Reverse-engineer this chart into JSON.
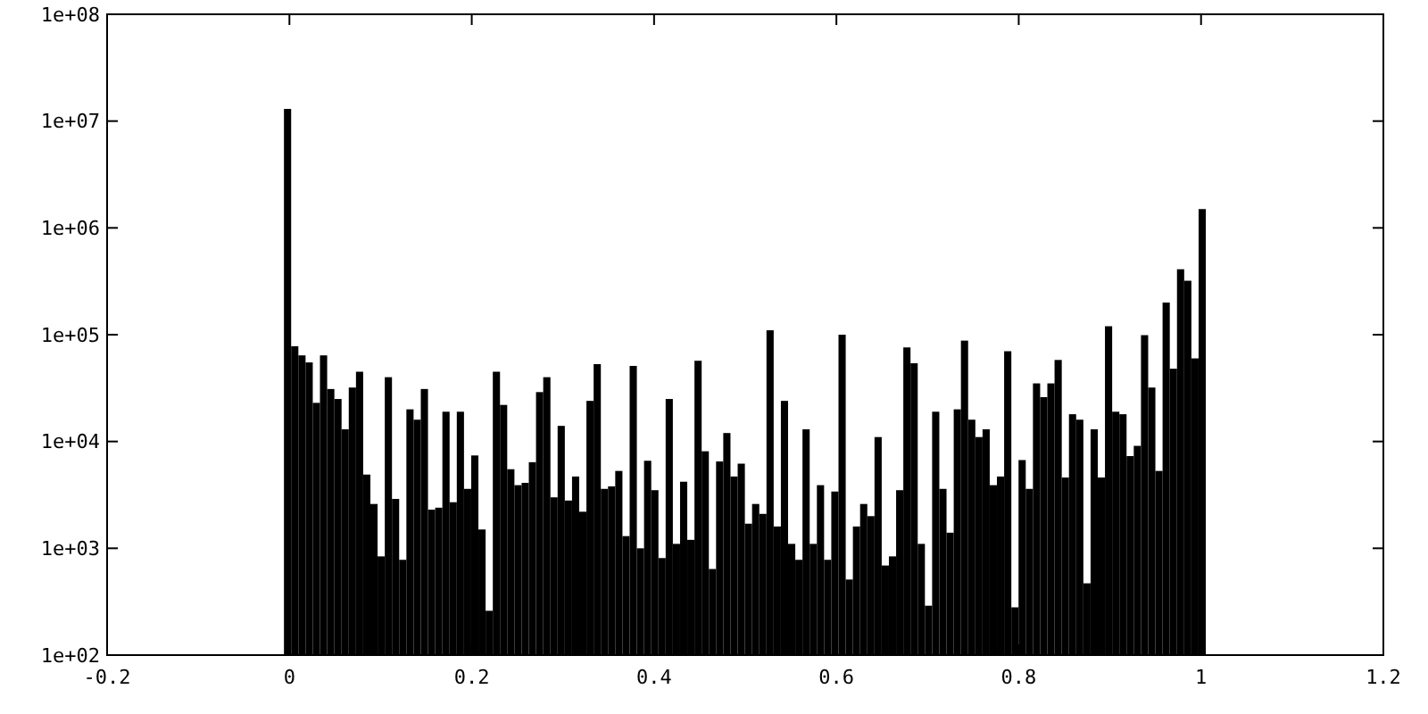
{
  "chart_data": {
    "type": "histogram",
    "log": "y",
    "color": "#000000",
    "grid": false,
    "bins": [
      -0.006,
      0.0019,
      0.0098,
      0.0177,
      0.0256,
      0.0335,
      0.0414,
      0.0493,
      0.0572,
      0.0651,
      0.073,
      0.0809,
      0.0888,
      0.0967,
      0.1046,
      0.1125,
      0.1204,
      0.1283,
      0.1362,
      0.1441,
      0.152,
      0.1599,
      0.1678,
      0.1757,
      0.1836,
      0.1915,
      0.1994,
      0.2073,
      0.2152,
      0.2231,
      0.231,
      0.2389,
      0.2468,
      0.2547,
      0.2626,
      0.2705,
      0.2784,
      0.2863,
      0.2942,
      0.3021,
      0.31,
      0.3179,
      0.3258,
      0.3337,
      0.3416,
      0.3495,
      0.3574,
      0.3653,
      0.3732,
      0.3811,
      0.389,
      0.3969,
      0.4048,
      0.4127,
      0.4206,
      0.4285,
      0.4364,
      0.4443,
      0.4522,
      0.4601,
      0.468,
      0.4759,
      0.4838,
      0.4917,
      0.4996,
      0.5075,
      0.5154,
      0.5233,
      0.5312,
      0.5391,
      0.547,
      0.5549,
      0.5628,
      0.5707,
      0.5786,
      0.5865,
      0.5944,
      0.6023,
      0.6102,
      0.6181,
      0.626,
      0.6339,
      0.6418,
      0.6497,
      0.6576,
      0.6655,
      0.6734,
      0.6813,
      0.6892,
      0.6971,
      0.705,
      0.7129,
      0.7208,
      0.7287,
      0.7366,
      0.7445,
      0.7524,
      0.7603,
      0.7682,
      0.7761,
      0.784,
      0.7919,
      0.7998,
      0.8077,
      0.8156,
      0.8235,
      0.8314,
      0.8393,
      0.8472,
      0.8551,
      0.863,
      0.8709,
      0.8788,
      0.8867,
      0.8946,
      0.9025,
      0.9104,
      0.9183,
      0.9262,
      0.9341,
      0.942,
      0.9499,
      0.9578,
      0.9657,
      0.9736,
      0.9815,
      0.9894,
      0.9973,
      1.0052
    ],
    "values": [
      13000000,
      78000,
      64000,
      55000,
      23000,
      64000,
      31000,
      25000,
      13000,
      32000,
      45000,
      4900,
      2600,
      840,
      40000,
      2900,
      780,
      20000,
      16000,
      31000,
      2300,
      2400,
      19000,
      2700,
      19000,
      3600,
      7400,
      1500,
      260,
      45000,
      22000,
      5500,
      3900,
      4100,
      6400,
      29000,
      40000,
      3000,
      14000,
      2800,
      4700,
      2200,
      24000,
      53000,
      3600,
      3800,
      5300,
      1300,
      51000,
      1000,
      6600,
      3500,
      810,
      25000,
      1100,
      4200,
      1200,
      57000,
      8100,
      640,
      6500,
      12000,
      4700,
      6200,
      1700,
      2600,
      2100,
      110000,
      1600,
      24000,
      1100,
      780,
      13000,
      1100,
      3900,
      780,
      3400,
      100000,
      510,
      1600,
      2600,
      2000,
      11000,
      690,
      840,
      3500,
      76000,
      54000,
      1100,
      290,
      19000,
      3600,
      1400,
      20000,
      88000,
      16000,
      11000,
      13000,
      3900,
      4700,
      70000,
      280,
      6700,
      3600,
      35000,
      26000,
      35000,
      58000,
      4600,
      18000,
      16000,
      470,
      13000,
      4600,
      120000,
      19000,
      18000,
      7300,
      9100,
      99000,
      32000,
      5300,
      200000,
      48000,
      410000,
      320000,
      60000,
      1500000
    ],
    "xlim": [
      -0.2,
      1.2
    ],
    "xticks": [
      -0.2,
      0,
      0.2,
      0.4,
      0.6,
      0.8,
      1,
      1.2
    ],
    "ylim": [
      100,
      100000000
    ],
    "yticks": [
      {
        "value": 100,
        "label": "1e+02"
      },
      {
        "value": 1000,
        "label": "1e+03"
      },
      {
        "value": 10000,
        "label": "1e+04"
      },
      {
        "value": 100000,
        "label": "1e+05"
      },
      {
        "value": 1000000,
        "label": "1e+06"
      },
      {
        "value": 10000000,
        "label": "1e+07"
      },
      {
        "value": 100000000,
        "label": "1e+08"
      }
    ]
  }
}
